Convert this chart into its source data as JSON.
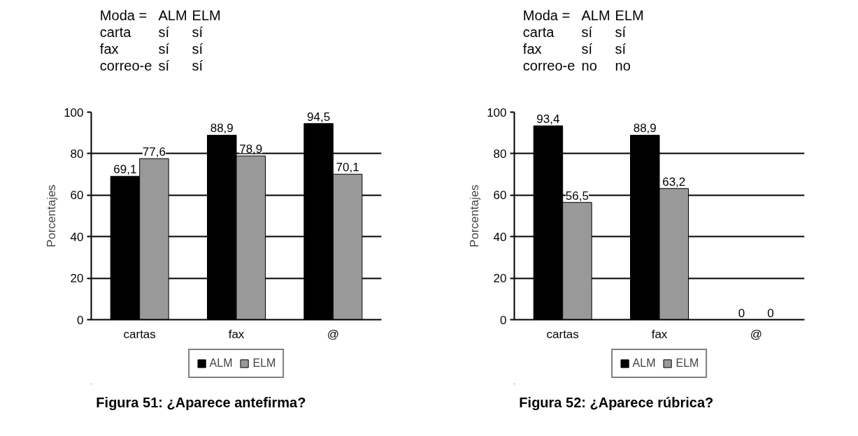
{
  "chart_data": [
    {
      "type": "bar",
      "title": "Figura 51: ¿Aparece antefirma?",
      "ylabel": "Porcentajes",
      "annotations": [
        "Moda =",
        "ALM",
        "ELM",
        "carta",
        "sí",
        "sí",
        "fax",
        "sí",
        "sí",
        "correo-e",
        "sí",
        "sí"
      ],
      "categories": [
        "cartas",
        "fax",
        "@"
      ],
      "series": [
        {
          "name": "ALM",
          "color": "#000000",
          "values": [
            69.1,
            88.9,
            94.5
          ],
          "value_labels": [
            "69,1",
            "88,9",
            "94,5"
          ]
        },
        {
          "name": "ELM",
          "color": "#999999",
          "values": [
            77.6,
            78.9,
            70.1
          ],
          "value_labels": [
            "77,6",
            "78,9",
            "70,1"
          ]
        }
      ],
      "ylim": [
        0,
        100
      ],
      "yticks": [
        0,
        20,
        40,
        60,
        80,
        100
      ],
      "grid": "y",
      "legend": "bottom"
    },
    {
      "type": "bar",
      "title": "Figura 52: ¿Aparece rúbrica?",
      "ylabel": "Porcentajes",
      "annotations": [
        "Moda =",
        "ALM",
        "ELM",
        "carta",
        "sí",
        "sí",
        "fax",
        "sí",
        "sí",
        "correo-e",
        "no",
        "no"
      ],
      "categories": [
        "cartas",
        "fax",
        "@"
      ],
      "series": [
        {
          "name": "ALM",
          "color": "#000000",
          "values": [
            93.4,
            88.9,
            0
          ],
          "value_labels": [
            "93,4",
            "88,9",
            "0"
          ]
        },
        {
          "name": "ELM",
          "color": "#999999",
          "values": [
            56.5,
            63.2,
            0
          ],
          "value_labels": [
            "56,5",
            "63,2",
            "0"
          ]
        }
      ],
      "ylim": [
        0,
        100
      ],
      "yticks": [
        0,
        20,
        40,
        60,
        80,
        100
      ],
      "grid": "y",
      "legend": "bottom"
    }
  ]
}
